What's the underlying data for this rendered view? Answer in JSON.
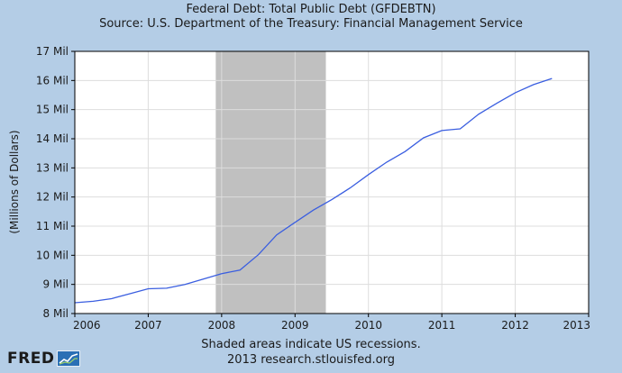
{
  "header": {
    "title": "Federal Debt: Total Public Debt (GFDEBTN)",
    "subtitle": "Source: U.S. Department of the Treasury: Financial Management Service"
  },
  "footer": {
    "note": "Shaded areas indicate US recessions.",
    "credit": "2013 research.stlouisfed.org",
    "logo_text": "FRED"
  },
  "chart_data": {
    "type": "line",
    "ylabel": "(Millions of Dollars)",
    "xlim": [
      2006,
      2013
    ],
    "ylim": [
      8,
      17
    ],
    "x_ticks": [
      2006,
      2007,
      2008,
      2009,
      2010,
      2011,
      2012,
      2013
    ],
    "x_tick_labels": [
      "2006",
      "2007",
      "2008",
      "2009",
      "2010",
      "2011",
      "2012",
      "2013"
    ],
    "y_ticks": [
      8,
      9,
      10,
      11,
      12,
      13,
      14,
      15,
      16,
      17
    ],
    "y_tick_labels": [
      "8 Mil",
      "9 Mil",
      "10 Mil",
      "11 Mil",
      "12 Mil",
      "13 Mil",
      "14 Mil",
      "15 Mil",
      "16 Mil",
      "17 Mil"
    ],
    "grid": true,
    "recession_shading": [
      {
        "start": 2007.92,
        "end": 2009.42,
        "color": "#c0c0c0"
      }
    ],
    "series": [
      {
        "color": "#3a5ee0",
        "x": [
          2006.0,
          2006.25,
          2006.5,
          2006.75,
          2007.0,
          2007.25,
          2007.5,
          2007.75,
          2008.0,
          2008.25,
          2008.5,
          2008.75,
          2009.0,
          2009.25,
          2009.5,
          2009.75,
          2010.0,
          2010.25,
          2010.5,
          2010.75,
          2011.0,
          2011.25,
          2011.5,
          2011.75,
          2012.0,
          2012.25,
          2012.5
        ],
        "y": [
          8.37,
          8.42,
          8.51,
          8.68,
          8.85,
          8.87,
          9.0,
          9.18,
          9.37,
          9.49,
          10.02,
          10.7,
          11.13,
          11.55,
          11.91,
          12.31,
          12.77,
          13.2,
          13.56,
          14.03,
          14.28,
          14.34,
          14.84,
          15.22,
          15.58,
          15.86,
          16.07
        ]
      }
    ]
  }
}
